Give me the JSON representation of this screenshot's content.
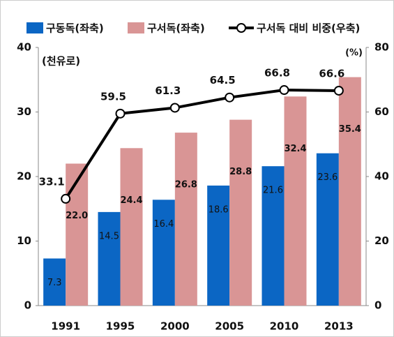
{
  "chart_data": {
    "type": "bar",
    "categories": [
      "1991",
      "1995",
      "2000",
      "2005",
      "2010",
      "2013"
    ],
    "y_unit_label": "(천유로)",
    "y2_unit_label": "(%)",
    "series": [
      {
        "name": "구동독(좌축)",
        "color": "#0b66c4",
        "values": [
          7.3,
          14.5,
          16.4,
          18.6,
          21.6,
          23.6
        ]
      },
      {
        "name": "구서독(좌축)",
        "color": "#d99595",
        "values": [
          22.0,
          24.4,
          26.8,
          28.8,
          32.4,
          35.4
        ],
        "value_labels": [
          "22.0",
          "24.4",
          "26.8",
          "28.8",
          "32.4",
          "35.4"
        ]
      },
      {
        "name": "구서독 대비 비중(우축)",
        "color": "#000000",
        "type": "line",
        "axis": "y2",
        "values": [
          33.1,
          59.5,
          61.3,
          64.5,
          66.8,
          66.6
        ]
      }
    ],
    "ylim": [
      0,
      40
    ],
    "yticks": [
      0,
      10,
      20,
      30,
      40
    ],
    "y2lim": [
      0,
      80
    ],
    "y2ticks": [
      0,
      20,
      40,
      60,
      80
    ],
    "grid": false
  }
}
